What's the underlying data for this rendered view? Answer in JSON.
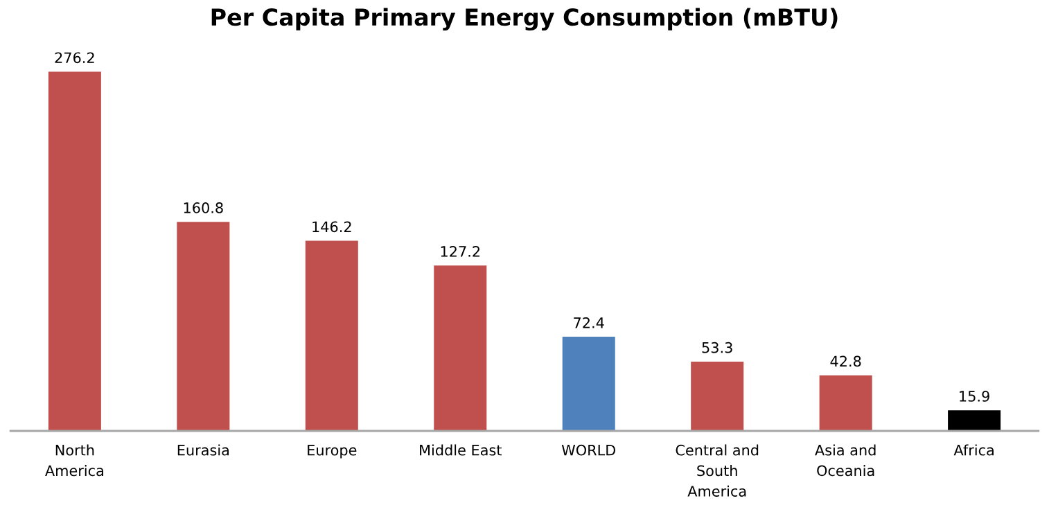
{
  "chart_data": {
    "type": "bar",
    "title": "Per Capita Primary Energy Consumption (mBTU)",
    "categories": [
      "North\nAmerica",
      "Eurasia",
      "Europe",
      "Middle East",
      "WORLD",
      "Central and\nSouth\nAmerica",
      "Asia and\nOceania",
      "Africa"
    ],
    "values": [
      276.2,
      160.8,
      146.2,
      127.2,
      72.4,
      53.3,
      42.8,
      15.9
    ],
    "colors": [
      "#c0504d",
      "#c0504d",
      "#c0504d",
      "#c0504d",
      "#4f81bd",
      "#c0504d",
      "#c0504d",
      "#000000"
    ],
    "data_labels": true,
    "grid": false,
    "legend": false
  }
}
